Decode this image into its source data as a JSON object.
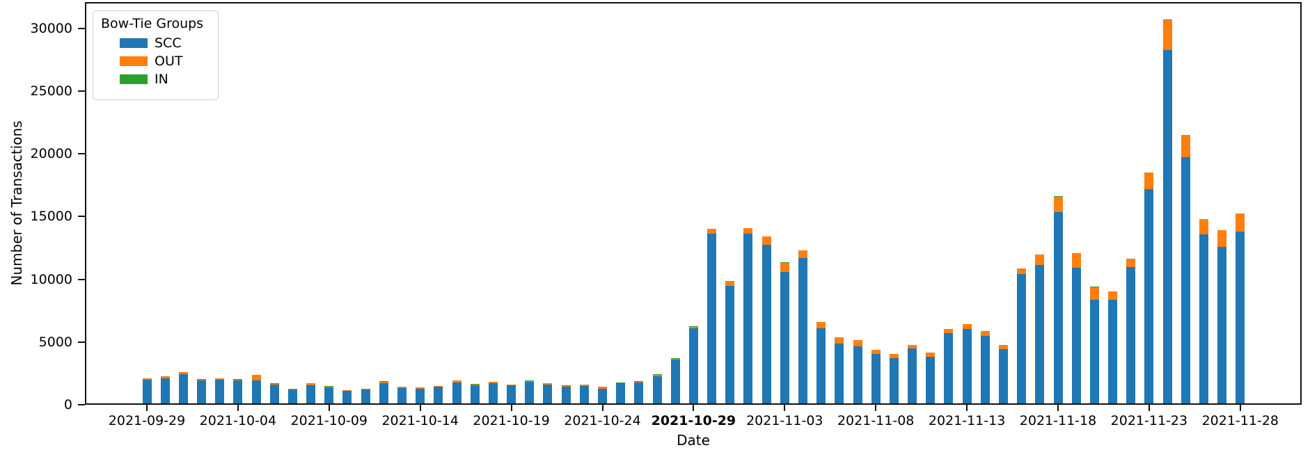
{
  "figure": {
    "background": "#ffffff",
    "xlabel": "Date",
    "ylabel": "Number of Transactions"
  },
  "legend": {
    "title": "Bow-Tie Groups",
    "entries": [
      {
        "label": "SCC",
        "color": "#1f77b4"
      },
      {
        "label": "OUT",
        "color": "#ff7f0e"
      },
      {
        "label": "IN",
        "color": "#2ca02c"
      }
    ]
  },
  "chart_data": {
    "type": "bar",
    "stacked": true,
    "title": "",
    "xlabel": "Date",
    "ylabel": "Number of Transactions",
    "ylim": [
      0,
      32000
    ],
    "yticks": [
      0,
      5000,
      10000,
      15000,
      20000,
      25000,
      30000
    ],
    "grid": false,
    "legend_position": "upper left",
    "legend_title": "Bow-Tie Groups",
    "categories": [
      "2021-09-29",
      "2021-09-30",
      "2021-10-01",
      "2021-10-02",
      "2021-10-03",
      "2021-10-04",
      "2021-10-05",
      "2021-10-06",
      "2021-10-07",
      "2021-10-08",
      "2021-10-09",
      "2021-10-10",
      "2021-10-11",
      "2021-10-12",
      "2021-10-13",
      "2021-10-14",
      "2021-10-15",
      "2021-10-16",
      "2021-10-17",
      "2021-10-18",
      "2021-10-19",
      "2021-10-20",
      "2021-10-21",
      "2021-10-22",
      "2021-10-23",
      "2021-10-24",
      "2021-10-25",
      "2021-10-26",
      "2021-10-27",
      "2021-10-28",
      "2021-10-29",
      "2021-10-30",
      "2021-10-31",
      "2021-11-01",
      "2021-11-02",
      "2021-11-03",
      "2021-11-04",
      "2021-11-05",
      "2021-11-06",
      "2021-11-07",
      "2021-11-08",
      "2021-11-09",
      "2021-11-10",
      "2021-11-11",
      "2021-11-12",
      "2021-11-13",
      "2021-11-14",
      "2021-11-15",
      "2021-11-16",
      "2021-11-17",
      "2021-11-18",
      "2021-11-19",
      "2021-11-20",
      "2021-11-21",
      "2021-11-22",
      "2021-11-23",
      "2021-11-24",
      "2021-11-25",
      "2021-11-26",
      "2021-11-27",
      "2021-11-28"
    ],
    "xtick_labels": [
      "2021-09-29",
      "2021-10-04",
      "2021-10-09",
      "2021-10-14",
      "2021-10-19",
      "2021-10-24",
      "2021-10-29",
      "2021-11-03",
      "2021-11-08",
      "2021-11-13",
      "2021-11-18",
      "2021-11-23",
      "2021-11-28"
    ],
    "xtick_step": 5,
    "bold_xtick_label": "2021-10-29",
    "series": [
      {
        "name": "SCC",
        "color": "#1f77b4",
        "values": [
          1870,
          1990,
          2320,
          1840,
          1870,
          1820,
          1850,
          1500,
          1110,
          1440,
          1260,
          1020,
          1110,
          1630,
          1220,
          1180,
          1330,
          1670,
          1460,
          1630,
          1420,
          1710,
          1520,
          1340,
          1370,
          1170,
          1590,
          1670,
          2150,
          3490,
          6010,
          13550,
          9370,
          13500,
          12630,
          10500,
          11560,
          6010,
          4750,
          4570,
          3940,
          3600,
          4380,
          3700,
          5580,
          5920,
          5360,
          4350,
          10300,
          11010,
          15220,
          10830,
          8250,
          8280,
          10870,
          17060,
          28130,
          19610,
          13460,
          12490,
          13700
        ]
      },
      {
        "name": "OUT",
        "color": "#ff7f0e",
        "values": [
          150,
          160,
          200,
          110,
          150,
          95,
          410,
          115,
          60,
          150,
          115,
          55,
          70,
          120,
          130,
          80,
          60,
          150,
          80,
          110,
          90,
          110,
          110,
          90,
          110,
          150,
          80,
          80,
          170,
          90,
          110,
          370,
          370,
          460,
          680,
          680,
          640,
          500,
          520,
          480,
          320,
          320,
          280,
          330,
          330,
          400,
          430,
          310,
          470,
          870,
          1240,
          1140,
          1000,
          670,
          670,
          1350,
          2400,
          1810,
          1250,
          1300,
          1440
        ]
      },
      {
        "name": "IN",
        "color": "#2ca02c",
        "values": [
          0,
          0,
          0,
          15,
          0,
          15,
          0,
          15,
          0,
          0,
          15,
          0,
          0,
          15,
          0,
          0,
          0,
          0,
          15,
          0,
          0,
          15,
          0,
          15,
          0,
          0,
          15,
          15,
          15,
          20,
          20,
          0,
          0,
          0,
          0,
          75,
          0,
          0,
          0,
          0,
          0,
          0,
          0,
          0,
          0,
          0,
          0,
          0,
          0,
          0,
          40,
          0,
          55,
          0,
          0,
          0,
          60,
          0,
          0,
          0,
          0
        ]
      }
    ]
  }
}
